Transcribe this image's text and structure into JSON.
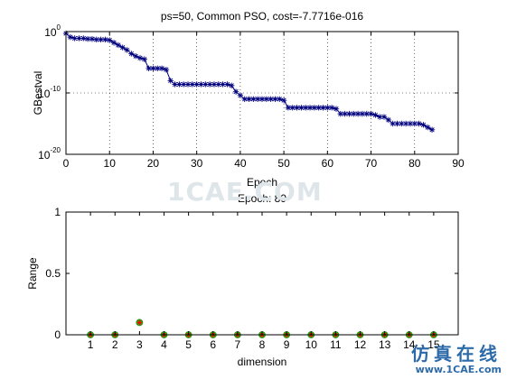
{
  "chart_data": [
    {
      "type": "line",
      "title": "ps=50, Common PSO, cost=-7.7716e-016",
      "xlabel": "Epoch",
      "ylabel": "GBestval",
      "xlim": [
        0,
        90
      ],
      "ylim_exponent": [
        -20,
        0
      ],
      "y_scale": "log",
      "x_ticks": [
        "0",
        "10",
        "20",
        "30",
        "40",
        "50",
        "60",
        "70",
        "80",
        "90"
      ],
      "y_ticks": [
        {
          "base": "10",
          "exp": "0"
        },
        {
          "base": "10",
          "exp": "-10"
        },
        {
          "base": "10",
          "exp": "-20"
        }
      ],
      "grid": "dotted",
      "marker": "*",
      "series_color": "#00007f",
      "steps": [
        [
          0,
          -0.3
        ],
        [
          1,
          -0.9
        ],
        [
          2,
          -1.1
        ],
        [
          5,
          -1.2
        ],
        [
          7,
          -1.3
        ],
        [
          10,
          -1.4
        ],
        [
          11,
          -1.8
        ],
        [
          12,
          -2.2
        ],
        [
          13,
          -2.6
        ],
        [
          14,
          -3.0
        ],
        [
          15,
          -3.6
        ],
        [
          16,
          -4.0
        ],
        [
          17,
          -4.3
        ],
        [
          18,
          -4.5
        ],
        [
          19,
          -6.0
        ],
        [
          23,
          -6.2
        ],
        [
          24,
          -8.0
        ],
        [
          25,
          -8.6
        ],
        [
          38,
          -8.8
        ],
        [
          39,
          -9.8
        ],
        [
          40,
          -10.4
        ],
        [
          41,
          -11.0
        ],
        [
          50,
          -11.2
        ],
        [
          51,
          -12.4
        ],
        [
          62,
          -12.6
        ],
        [
          63,
          -13.4
        ],
        [
          71,
          -13.6
        ],
        [
          72,
          -13.9
        ],
        [
          74,
          -14.4
        ],
        [
          75,
          -15.0
        ],
        [
          82,
          -15.2
        ],
        [
          83,
          -15.6
        ],
        [
          84,
          -16.0
        ]
      ]
    },
    {
      "type": "scatter",
      "title": "Epoch: 89",
      "xlabel": "dimension",
      "ylabel": "Range",
      "xlim": [
        0,
        16
      ],
      "ylim": [
        0,
        1
      ],
      "x_ticks": [
        "1",
        "2",
        "3",
        "4",
        "5",
        "6",
        "7",
        "8",
        "9",
        "10",
        "11",
        "12",
        "13",
        "14",
        "15"
      ],
      "y_ticks": [
        "0",
        "0.5",
        "1"
      ],
      "grid": "off",
      "marker_color": "#00cc00",
      "marker_accent": "#ff0000",
      "x": [
        1,
        2,
        3,
        4,
        5,
        6,
        7,
        8,
        9,
        10,
        11,
        12,
        13,
        14,
        15
      ],
      "y": [
        0,
        0,
        0.1,
        0,
        0,
        0,
        0,
        0,
        0,
        0,
        0,
        0,
        0,
        0,
        0
      ]
    }
  ],
  "watermark": {
    "center_text": "1CAE.COM",
    "badge_cn": "仿真在线",
    "badge_url": "www.1CAE.com"
  }
}
